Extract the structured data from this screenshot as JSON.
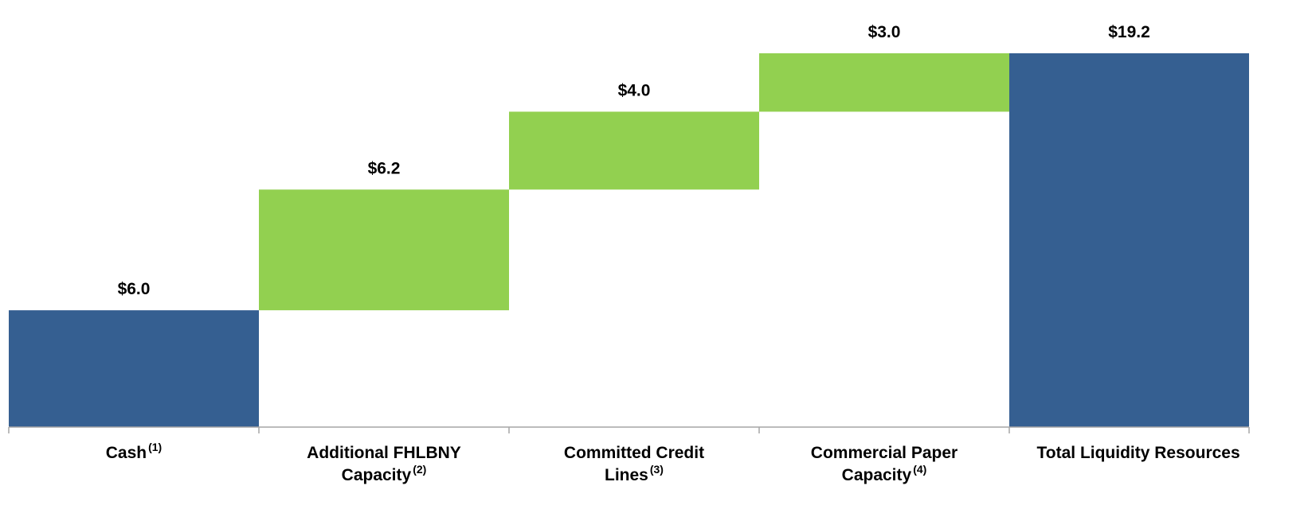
{
  "chart_data": {
    "type": "waterfall",
    "categories": [
      "Cash",
      "Additional FHLBNY Capacity",
      "Committed Credit Lines",
      "Commercial Paper Capacity",
      "Total Liquidity Resources"
    ],
    "category_notes": [
      "(1)",
      "(2)",
      "(3)",
      "(4)",
      null
    ],
    "measures": [
      "absolute",
      "relative",
      "relative",
      "relative",
      "total"
    ],
    "values": [
      6.0,
      6.2,
      4.0,
      3.0,
      19.2
    ],
    "value_labels": [
      "$6.0",
      "$6.2",
      "$4.0",
      "$3.0",
      "$19.2"
    ],
    "colors": [
      "#355f91",
      "#92d050",
      "#92d050",
      "#92d050",
      "#355f91"
    ]
  }
}
